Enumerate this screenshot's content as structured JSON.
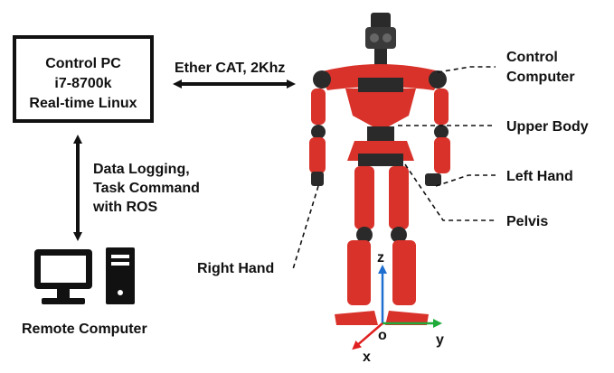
{
  "control_pc": {
    "line1": "Control PC",
    "line2": "i7-8700k",
    "line3": "Real-time Linux"
  },
  "ethercat_label": "Ether CAT, 2Khz",
  "ros_link": {
    "line1": "Data Logging,",
    "line2": "Task Command",
    "line3": "with ROS"
  },
  "remote_computer_label": "Remote Computer",
  "robot_parts": {
    "control_computer_line1": "Control",
    "control_computer_line2": "Computer",
    "upper_body": "Upper Body",
    "left_hand": "Left Hand",
    "pelvis": "Pelvis",
    "right_hand": "Right Hand"
  },
  "axes": {
    "x": "x",
    "y": "y",
    "z": "z",
    "origin": "o"
  },
  "colors": {
    "robot_red": "#d8322a",
    "robot_dark": "#2a2a2a",
    "axis_x": "#e02020",
    "axis_y": "#1faa3a",
    "axis_z": "#1f6fd0",
    "line": "#111111"
  }
}
